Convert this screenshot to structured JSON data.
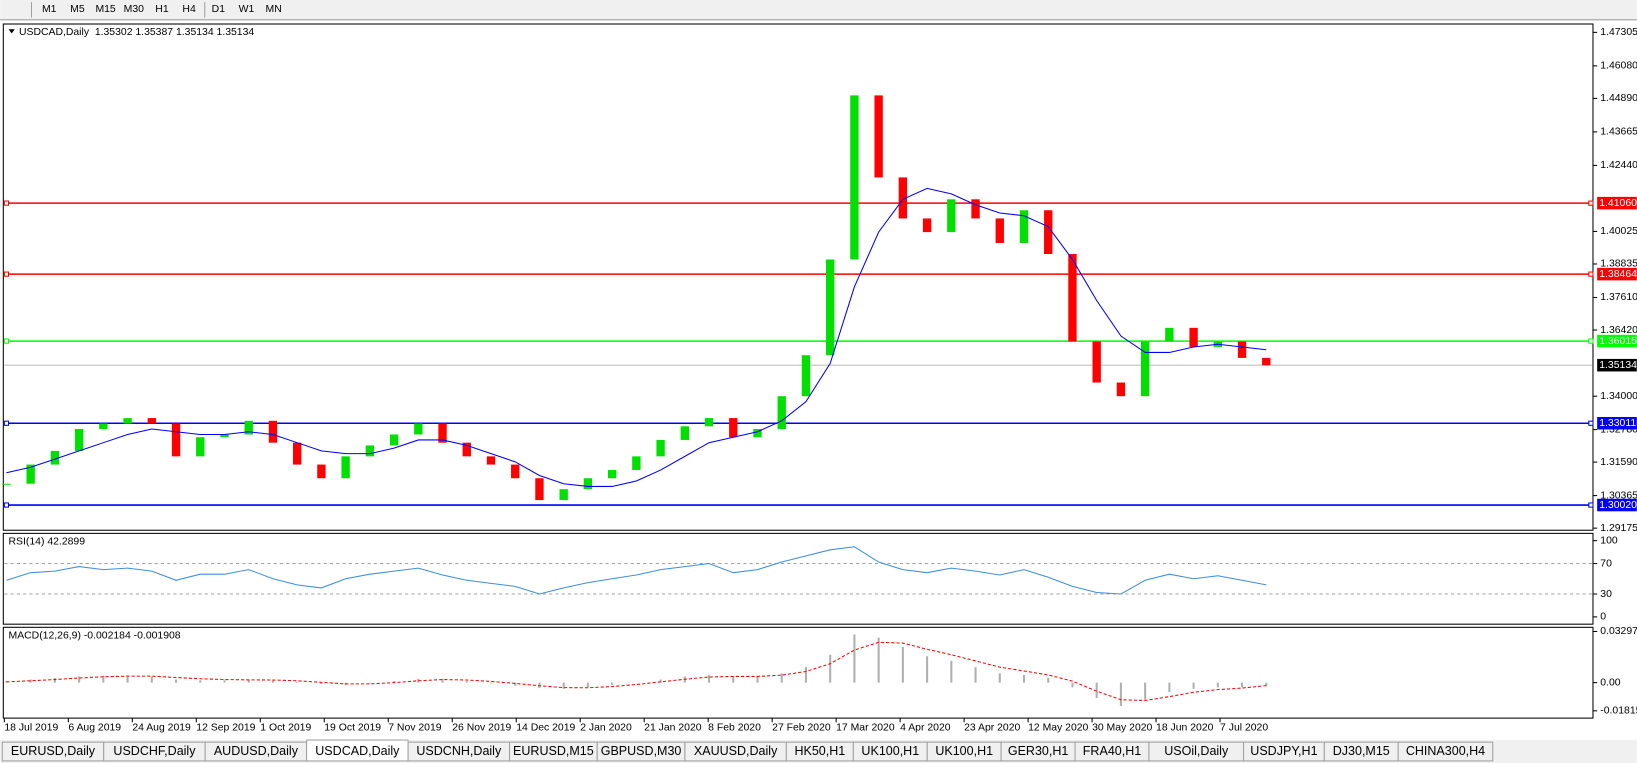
{
  "toolbar": {
    "timeframes": [
      "M1",
      "M5",
      "M15",
      "M30",
      "H1",
      "H4",
      "D1",
      "W1",
      "MN"
    ]
  },
  "chart": {
    "header": "USDCAD,Daily  1.35302 1.35387 1.35134 1.35134",
    "closes": [
      1.308,
      1.315,
      1.32,
      1.328,
      1.33,
      1.332,
      1.33,
      1.318,
      1.325,
      1.326,
      1.331,
      1.323,
      1.315,
      1.31,
      1.318,
      1.322,
      1.326,
      1.33,
      1.323,
      1.318,
      1.315,
      1.31,
      1.302,
      1.306,
      1.31,
      1.313,
      1.318,
      1.324,
      1.329,
      1.332,
      1.325,
      1.328,
      1.34,
      1.355,
      1.39,
      1.45,
      1.42,
      1.405,
      1.4,
      1.412,
      1.405,
      1.396,
      1.408,
      1.392,
      1.36,
      1.345,
      1.34,
      1.36,
      1.365,
      1.358,
      1.36,
      1.354,
      1.3513
    ],
    "ma": [
      1.312,
      1.314,
      1.317,
      1.32,
      1.323,
      1.326,
      1.328,
      1.327,
      1.326,
      1.326,
      1.327,
      1.326,
      1.323,
      1.32,
      1.319,
      1.319,
      1.321,
      1.324,
      1.324,
      1.322,
      1.319,
      1.316,
      1.311,
      1.308,
      1.307,
      1.307,
      1.309,
      1.313,
      1.318,
      1.323,
      1.325,
      1.327,
      1.331,
      1.338,
      1.352,
      1.38,
      1.4,
      1.412,
      1.416,
      1.414,
      1.41,
      1.407,
      1.406,
      1.402,
      1.39,
      1.375,
      1.362,
      1.356,
      1.356,
      1.358,
      1.359,
      1.358,
      1.357
    ],
    "ylim": [
      1.29175,
      1.47305
    ],
    "yticks": [
      {
        "value": 1.47305,
        "label": "1.47305"
      },
      {
        "value": 1.4608,
        "label": "1.46080"
      },
      {
        "value": 1.4489,
        "label": "1.44890"
      },
      {
        "value": 1.43665,
        "label": "1.43665"
      },
      {
        "value": 1.4244,
        "label": "1.42440"
      },
      {
        "value": 1.40025,
        "label": "1.40025"
      },
      {
        "value": 1.38835,
        "label": "1.38835"
      },
      {
        "value": 1.3761,
        "label": "1.37610"
      },
      {
        "value": 1.3642,
        "label": "1.36420"
      },
      {
        "value": 1.34,
        "label": "1.34000"
      },
      {
        "value": 1.3278,
        "label": "1.32780"
      },
      {
        "value": 1.3159,
        "label": "1.31590"
      },
      {
        "value": 1.30365,
        "label": "1.30365"
      },
      {
        "value": 1.29175,
        "label": "1.29175"
      }
    ],
    "levels": [
      {
        "value": 1.4106,
        "label": "1.41060",
        "color": "#ff0000"
      },
      {
        "value": 1.38464,
        "label": "1.38464",
        "color": "#ff0000"
      },
      {
        "value": 1.36015,
        "label": "1.36015",
        "color": "#00ff00"
      },
      {
        "value": 1.33011,
        "label": "1.33011",
        "color": "#0000ff"
      },
      {
        "value": 1.3002,
        "label": "1.30020",
        "color": "#0000ff"
      }
    ],
    "last_price": 1.35134,
    "dates": [
      "18 Jul 2019",
      "6 Aug 2019",
      "24 Aug 2019",
      "12 Sep 2019",
      "1 Oct 2019",
      "19 Oct 2019",
      "7 Nov 2019",
      "26 Nov 2019",
      "14 Dec 2019",
      "2 Jan 2020",
      "21 Jan 2020",
      "8 Feb 2020",
      "27 Feb 2020",
      "17 Mar 2020",
      "4 Apr 2020",
      "23 Apr 2020",
      "12 May 2020",
      "30 May 2020",
      "18 Jun 2020",
      "7 Jul 2020"
    ]
  },
  "rsi": {
    "label": "RSI(14) 42.2899",
    "values": [
      48,
      58,
      60,
      66,
      62,
      64,
      60,
      48,
      56,
      56,
      62,
      50,
      42,
      38,
      50,
      56,
      60,
      64,
      55,
      48,
      44,
      40,
      30,
      38,
      45,
      50,
      55,
      62,
      66,
      70,
      58,
      62,
      72,
      80,
      88,
      92,
      72,
      62,
      58,
      64,
      60,
      55,
      62,
      52,
      40,
      32,
      30,
      48,
      56,
      50,
      54,
      48,
      42
    ],
    "ylim": [
      0,
      100
    ],
    "yticks": [
      100,
      70,
      30,
      0
    ],
    "levels": [
      70,
      30
    ]
  },
  "macd": {
    "label": "MACD(12,26,9) -0.002184 -0.001908",
    "histogram": [
      0.001,
      0.002,
      0.003,
      0.004,
      0.0045,
      0.0045,
      0.004,
      0.002,
      0.0015,
      0.0015,
      0.002,
      0.0015,
      0.0005,
      -0.001,
      -0.0015,
      -0.0005,
      0.001,
      0.0025,
      0.0025,
      0.001,
      -0.0005,
      -0.002,
      -0.0035,
      -0.004,
      -0.003,
      -0.0015,
      0.0,
      0.002,
      0.004,
      0.005,
      0.004,
      0.004,
      0.006,
      0.01,
      0.018,
      0.031,
      0.029,
      0.023,
      0.017,
      0.014,
      0.01,
      0.006,
      0.005,
      0.003,
      -0.003,
      -0.01,
      -0.015,
      -0.011,
      -0.006,
      -0.004,
      -0.003,
      -0.003,
      -0.0022
    ],
    "signal": [
      0.0005,
      0.0012,
      0.002,
      0.003,
      0.0038,
      0.0042,
      0.0042,
      0.0033,
      0.0025,
      0.002,
      0.0018,
      0.0017,
      0.0012,
      0.0002,
      -0.0008,
      -0.0008,
      0.0,
      0.0012,
      0.002,
      0.0017,
      0.0008,
      -0.0005,
      -0.002,
      -0.0032,
      -0.0033,
      -0.0025,
      -0.0012,
      0.0005,
      0.0022,
      0.0036,
      0.004,
      0.004,
      0.0048,
      0.0072,
      0.0122,
      0.021,
      0.026,
      0.0255,
      0.0215,
      0.018,
      0.014,
      0.01,
      0.0075,
      0.005,
      0.001,
      -0.0055,
      -0.011,
      -0.0115,
      -0.009,
      -0.0062,
      -0.0045,
      -0.0035,
      -0.0019
    ],
    "ylim": [
      -0.01815,
      0.032972
    ],
    "yticks": [
      0.032972,
      {
        "value": 0,
        "label": "0.00"
      },
      -0.01815
    ]
  },
  "tabs": {
    "items": [
      "EURUSD,Daily",
      "USDCHF,Daily",
      "AUDUSD,Daily",
      "USDCAD,Daily",
      "USDCNH,Daily",
      "EURUSD,M15",
      "GBPUSD,M30",
      "XAUUSD,Daily",
      "HK50,H1",
      "UK100,H1",
      "UK100,H1",
      "GER30,H1",
      "FRA40,H1",
      "USOil,Daily",
      "USDJPY,H1",
      "DJ30,M15",
      "CHINA300,H4"
    ],
    "active": 3
  }
}
